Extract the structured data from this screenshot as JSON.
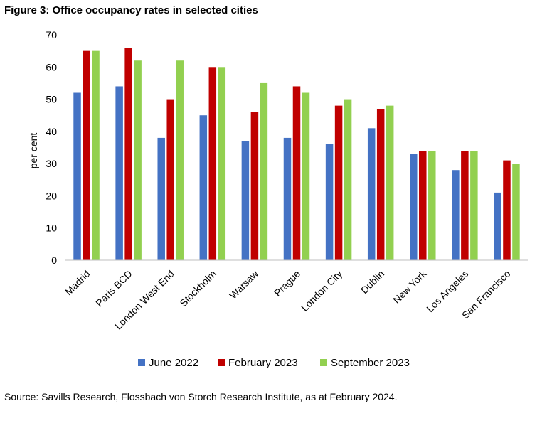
{
  "title": "Figure 3: Office occupancy rates in selected cities",
  "source": "Source: Savills Research, Flossbach von Storch Research Institute, as at February 2024.",
  "chart_data": {
    "type": "bar",
    "ylabel": "per cent",
    "ylim": [
      0,
      70
    ],
    "yticks": [
      "0",
      "10",
      "20",
      "30",
      "40",
      "50",
      "60",
      "70"
    ],
    "grid": false,
    "legend_position": "bottom",
    "categories": [
      "Madrid",
      "Paris BCD",
      "London West End",
      "Stockholm",
      "Warsaw",
      "Prague",
      "London City",
      "Dublin",
      "New York",
      "Los Angeles",
      "San Francisco"
    ],
    "series": [
      {
        "name": "June 2022",
        "color": "#4472C4",
        "values": [
          52,
          54,
          38,
          45,
          37,
          38,
          36,
          41,
          33,
          28,
          21
        ]
      },
      {
        "name": "February 2023",
        "color": "#C00000",
        "values": [
          65,
          66,
          50,
          60,
          46,
          54,
          48,
          47,
          34,
          34,
          31
        ]
      },
      {
        "name": "September 2023",
        "color": "#92D050",
        "values": [
          65,
          62,
          62,
          60,
          55,
          52,
          50,
          48,
          34,
          34,
          30
        ]
      }
    ]
  }
}
